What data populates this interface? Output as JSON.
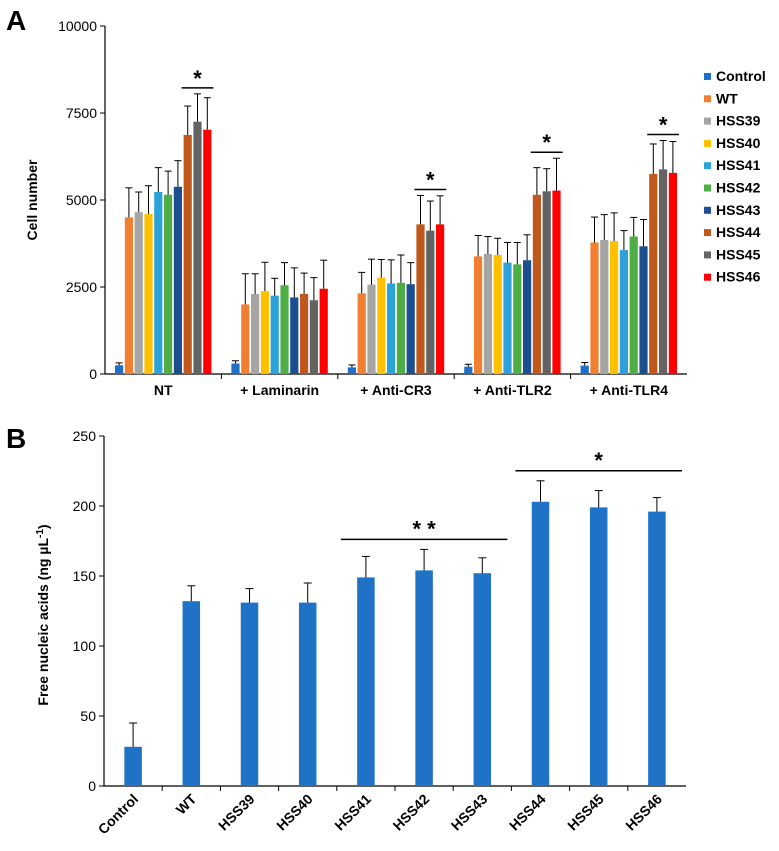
{
  "panels": {
    "a": {
      "letter": "A"
    },
    "b": {
      "letter": "B"
    }
  },
  "chart_data": [
    {
      "type": "bar",
      "title": "",
      "xlabel": "",
      "ylabel": "Cell number",
      "ylim": [
        0,
        10000
      ],
      "yticks": [
        0,
        2500,
        5000,
        7500,
        10000
      ],
      "categories": [
        "NT",
        "+ Laminarin",
        "+ Anti-CR3",
        "+ Anti-TLR2",
        "+ Anti-TLR4"
      ],
      "series": [
        {
          "name": "Control",
          "color": "#1f6fc8",
          "values": [
            250,
            300,
            190,
            210,
            240
          ],
          "errors": [
            70,
            80,
            70,
            70,
            90
          ]
        },
        {
          "name": "WT",
          "color": "#f07f32",
          "values": [
            4500,
            2000,
            2320,
            3380,
            3780
          ],
          "errors": [
            850,
            880,
            600,
            600,
            730
          ]
        },
        {
          "name": "HSS39",
          "color": "#a5a5a5",
          "values": [
            4650,
            2300,
            2570,
            3450,
            3850
          ],
          "errors": [
            580,
            580,
            730,
            500,
            730
          ]
        },
        {
          "name": "HSS40",
          "color": "#ffc000",
          "values": [
            4600,
            2380,
            2770,
            3420,
            3820
          ],
          "errors": [
            810,
            830,
            520,
            480,
            810
          ]
        },
        {
          "name": "HSS41",
          "color": "#2ca2d8",
          "values": [
            5230,
            2250,
            2600,
            3200,
            3560
          ],
          "errors": [
            700,
            500,
            680,
            580,
            560
          ]
        },
        {
          "name": "HSS42",
          "color": "#4fad45",
          "values": [
            5150,
            2550,
            2620,
            3150,
            3950
          ],
          "errors": [
            680,
            650,
            800,
            630,
            550
          ]
        },
        {
          "name": "HSS43",
          "color": "#1b4f8f",
          "values": [
            5380,
            2200,
            2580,
            3270,
            3670
          ],
          "errors": [
            750,
            850,
            620,
            730,
            770
          ]
        },
        {
          "name": "HSS44",
          "color": "#c0571c",
          "values": [
            6870,
            2300,
            4300,
            5150,
            5750
          ],
          "errors": [
            830,
            600,
            830,
            780,
            860
          ]
        },
        {
          "name": "HSS45",
          "color": "#636363",
          "values": [
            7250,
            2120,
            4120,
            5250,
            5880
          ],
          "errors": [
            800,
            650,
            850,
            650,
            830
          ]
        },
        {
          "name": "HSS46",
          "color": "#ff0000",
          "values": [
            7020,
            2450,
            4300,
            5270,
            5780
          ],
          "errors": [
            920,
            820,
            820,
            930,
            900
          ]
        }
      ],
      "significance": [
        {
          "category_index": 0,
          "from_series": 7,
          "to_series": 9,
          "label": "*"
        },
        {
          "category_index": 2,
          "from_series": 7,
          "to_series": 9,
          "label": "*"
        },
        {
          "category_index": 3,
          "from_series": 7,
          "to_series": 9,
          "label": "*"
        },
        {
          "category_index": 4,
          "from_series": 7,
          "to_series": 9,
          "label": "*"
        }
      ],
      "legend": "right"
    },
    {
      "type": "bar",
      "title": "",
      "xlabel": "",
      "ylabel": "Free nucleic acids (ng µL",
      "ylabel_superscript": "-1",
      "ylabel_close": ")",
      "ylim": [
        0,
        250
      ],
      "yticks": [
        0,
        50,
        100,
        150,
        200,
        250
      ],
      "color": "#1f72c6",
      "categories": [
        "Control",
        "WT",
        "HSS39",
        "HSS40",
        "HSS41",
        "HSS42",
        "HSS43",
        "HSS44",
        "HSS45",
        "HSS46"
      ],
      "values": [
        28,
        132,
        131,
        131,
        149,
        154,
        152,
        203,
        199,
        196
      ],
      "errors": [
        17,
        11,
        10,
        14,
        15,
        15,
        11,
        15,
        12,
        10
      ],
      "significance": [
        {
          "from_index": 4,
          "to_index": 6,
          "label": "* *"
        },
        {
          "from_index": 7,
          "to_index": 9,
          "label": "*"
        }
      ]
    }
  ]
}
